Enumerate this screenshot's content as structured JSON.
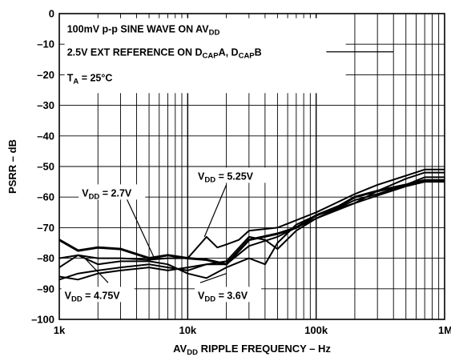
{
  "chart_data": {
    "type": "line",
    "xlabel": "AV_DD RIPPLE FREQUENCY – Hz",
    "xlabel_parts": {
      "pre": "AV",
      "sub": "DD",
      "post": " RIPPLE FREQUENCY – Hz"
    },
    "ylabel": "PSRR – dB",
    "x_scale": "log",
    "xlim": [
      1000,
      1000000
    ],
    "ylim": [
      -100,
      0
    ],
    "x_ticks": [
      {
        "value": 1000,
        "label": "1k"
      },
      {
        "value": 10000,
        "label": "10k"
      },
      {
        "value": 100000,
        "label": "100k"
      },
      {
        "value": 1000000,
        "label": "1M"
      }
    ],
    "y_ticks": [
      {
        "value": 0,
        "label": "0"
      },
      {
        "value": -10,
        "label": "–10"
      },
      {
        "value": -20,
        "label": "–20"
      },
      {
        "value": -30,
        "label": "–30"
      },
      {
        "value": -40,
        "label": "–40"
      },
      {
        "value": -50,
        "label": "–50"
      },
      {
        "value": -60,
        "label": "–60"
      },
      {
        "value": -70,
        "label": "–70"
      },
      {
        "value": -80,
        "label": "–80"
      },
      {
        "value": -90,
        "label": "–90"
      },
      {
        "value": -100,
        "label": "–100"
      }
    ],
    "grid": true,
    "conditions": [
      {
        "segments": [
          {
            "t": "100mV p-p SINE WAVE ON AV"
          },
          {
            "t": "DD",
            "sub": true
          }
        ]
      },
      {
        "segments": [
          {
            "t": "2.5V EXT REFERENCE ON D"
          },
          {
            "t": "CAP",
            "sub": true
          },
          {
            "t": "A, D"
          },
          {
            "t": "CAP",
            "sub": true
          },
          {
            "t": "B"
          }
        ]
      },
      {
        "segments": [
          {
            "t": "T"
          },
          {
            "t": "A",
            "sub": true
          },
          {
            "t": " = 25°C"
          }
        ]
      }
    ],
    "series": [
      {
        "name": "V_DD = 2.7V",
        "stroke": 3,
        "points": [
          [
            1000,
            -74
          ],
          [
            1400,
            -77.5
          ],
          [
            2000,
            -76.5
          ],
          [
            3000,
            -77
          ],
          [
            5000,
            -80
          ],
          [
            7000,
            -79
          ],
          [
            10000,
            -80
          ],
          [
            14000,
            -80.5
          ],
          [
            20000,
            -82
          ],
          [
            30000,
            -74
          ],
          [
            50000,
            -72
          ],
          [
            70000,
            -70
          ],
          [
            100000,
            -66
          ],
          [
            150000,
            -63
          ],
          [
            200000,
            -60
          ],
          [
            300000,
            -58
          ],
          [
            500000,
            -56
          ],
          [
            700000,
            -54.5
          ],
          [
            1000000,
            -54.5
          ]
        ]
      },
      {
        "name": "V_DD = 5.25V",
        "stroke": 2,
        "points": [
          [
            1000,
            -80
          ],
          [
            1400,
            -79
          ],
          [
            2000,
            -80
          ],
          [
            3000,
            -80
          ],
          [
            5000,
            -80.5
          ],
          [
            7000,
            -80
          ],
          [
            10000,
            -80
          ],
          [
            14000,
            -73
          ],
          [
            17000,
            -76.5
          ],
          [
            20000,
            -75.5
          ],
          [
            25000,
            -74
          ],
          [
            30000,
            -71
          ],
          [
            50000,
            -70
          ],
          [
            100000,
            -65
          ],
          [
            200000,
            -59
          ],
          [
            300000,
            -56
          ],
          [
            500000,
            -53
          ],
          [
            700000,
            -51
          ],
          [
            1000000,
            -51
          ]
        ]
      },
      {
        "name": "V_DD = 3.6V",
        "stroke": 2,
        "points": [
          [
            1000,
            -83
          ],
          [
            1400,
            -79
          ],
          [
            2000,
            -82
          ],
          [
            3000,
            -81
          ],
          [
            5000,
            -81
          ],
          [
            7000,
            -82
          ],
          [
            10000,
            -85
          ],
          [
            14000,
            -86.5
          ],
          [
            20000,
            -83
          ],
          [
            30000,
            -80
          ],
          [
            40000,
            -82
          ],
          [
            50000,
            -75
          ],
          [
            70000,
            -69
          ],
          [
            100000,
            -66
          ],
          [
            200000,
            -62
          ],
          [
            300000,
            -58
          ],
          [
            500000,
            -54
          ],
          [
            700000,
            -52
          ],
          [
            1000000,
            -52
          ]
        ]
      },
      {
        "name": "V_DD = 4.75V",
        "stroke": 2,
        "points": [
          [
            1000,
            -87
          ],
          [
            1400,
            -85
          ],
          [
            2000,
            -84
          ],
          [
            3000,
            -83
          ],
          [
            5000,
            -82
          ],
          [
            7000,
            -83
          ],
          [
            10000,
            -84
          ],
          [
            14000,
            -82
          ],
          [
            20000,
            -81
          ],
          [
            30000,
            -73
          ],
          [
            40000,
            -74
          ],
          [
            50000,
            -77
          ],
          [
            70000,
            -71
          ],
          [
            100000,
            -67
          ],
          [
            200000,
            -61
          ],
          [
            300000,
            -59
          ],
          [
            500000,
            -56
          ],
          [
            700000,
            -53.5
          ],
          [
            1000000,
            -53.5
          ]
        ]
      },
      {
        "name": "",
        "stroke": 2,
        "points": [
          [
            1000,
            -86
          ],
          [
            1400,
            -87
          ],
          [
            2000,
            -85
          ],
          [
            3000,
            -84
          ],
          [
            5000,
            -83
          ],
          [
            7000,
            -84
          ],
          [
            10000,
            -83
          ],
          [
            14000,
            -82
          ],
          [
            20000,
            -82
          ],
          [
            30000,
            -76
          ],
          [
            50000,
            -73
          ],
          [
            70000,
            -70
          ],
          [
            100000,
            -67
          ],
          [
            200000,
            -62
          ],
          [
            300000,
            -59.5
          ],
          [
            500000,
            -56.5
          ],
          [
            700000,
            -55
          ],
          [
            1000000,
            -55
          ]
        ]
      }
    ],
    "annotations": [
      {
        "pre": "V",
        "sub": "DD",
        "post": " = 2.7V",
        "x": 1500,
        "y": -59,
        "anchor": "start",
        "leader": [
          [
            3300,
            -60
          ],
          [
            5500,
            -80
          ]
        ]
      },
      {
        "pre": "V",
        "sub": "DD",
        "post": " = 5.25V",
        "x": 12000,
        "y": -53.5,
        "anchor": "start",
        "leader": [
          [
            20000,
            -56
          ],
          [
            13500,
            -73
          ]
        ]
      },
      {
        "pre": "V",
        "sub": "DD",
        "post": " = 4.75V",
        "x": 1100,
        "y": -92.5,
        "anchor": "start",
        "leader": [
          [
            2400,
            -88
          ],
          [
            1500,
            -79
          ]
        ]
      },
      {
        "pre": "V",
        "sub": "DD",
        "post": " = 3.6V",
        "x": 12000,
        "y": -92.5,
        "anchor": "start",
        "leader": [
          [
            12500,
            -88
          ],
          [
            20000,
            -85
          ]
        ]
      }
    ]
  }
}
